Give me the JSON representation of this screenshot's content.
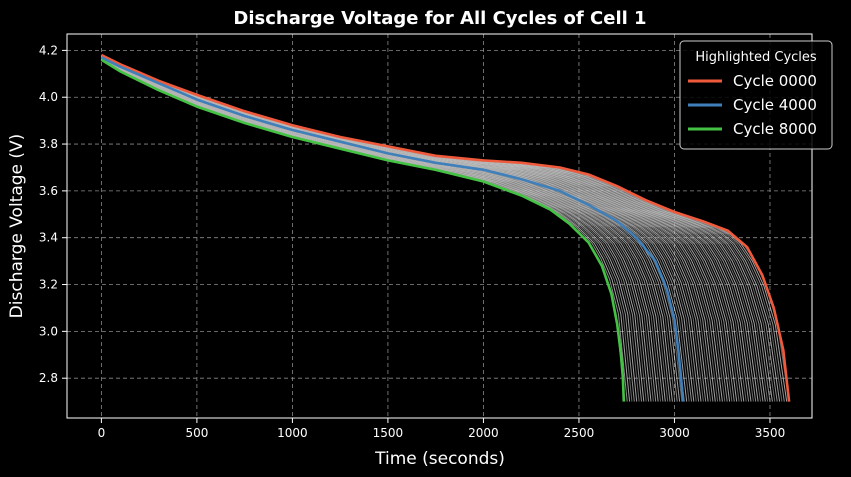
{
  "chart_data": {
    "type": "line",
    "title": "Discharge Voltage for All Cycles of Cell 1",
    "xlabel": "Time (seconds)",
    "ylabel": "Discharge Voltage (V)",
    "xlim": [
      -180,
      3720
    ],
    "ylim": [
      2.63,
      4.27
    ],
    "xticks": [
      0,
      500,
      1000,
      1500,
      2000,
      2500,
      3000,
      3500
    ],
    "yticks": [
      2.8,
      3.0,
      3.2,
      3.4,
      3.6,
      3.8,
      4.0,
      4.2
    ],
    "grid": true,
    "legend": {
      "title": "Highlighted Cycles",
      "position": "top-right"
    },
    "colors": {
      "background": "#000000",
      "grid": "#8a8a8a",
      "text": "#ffffff",
      "background_cycles": "#bdbdbd"
    },
    "background_cycles": {
      "color": "#bdbdbd",
      "end_time_range": [
        2740,
        3600
      ]
    },
    "series": [
      {
        "name": "Cycle 0000",
        "color": "#f05a3c",
        "points": [
          [
            0,
            4.18
          ],
          [
            100,
            4.14
          ],
          [
            300,
            4.07
          ],
          [
            500,
            4.01
          ],
          [
            750,
            3.94
          ],
          [
            1000,
            3.88
          ],
          [
            1250,
            3.83
          ],
          [
            1500,
            3.79
          ],
          [
            1750,
            3.75
          ],
          [
            2000,
            3.73
          ],
          [
            2200,
            3.72
          ],
          [
            2400,
            3.7
          ],
          [
            2550,
            3.67
          ],
          [
            2700,
            3.62
          ],
          [
            2850,
            3.56
          ],
          [
            3000,
            3.51
          ],
          [
            3150,
            3.47
          ],
          [
            3280,
            3.43
          ],
          [
            3380,
            3.36
          ],
          [
            3460,
            3.24
          ],
          [
            3520,
            3.1
          ],
          [
            3570,
            2.92
          ],
          [
            3600,
            2.7
          ]
        ]
      },
      {
        "name": "Cycle 4000",
        "color": "#3f7fba",
        "points": [
          [
            0,
            4.17
          ],
          [
            100,
            4.13
          ],
          [
            300,
            4.06
          ],
          [
            500,
            3.99
          ],
          [
            750,
            3.92
          ],
          [
            1000,
            3.86
          ],
          [
            1250,
            3.81
          ],
          [
            1500,
            3.76
          ],
          [
            1750,
            3.72
          ],
          [
            2000,
            3.69
          ],
          [
            2200,
            3.65
          ],
          [
            2400,
            3.6
          ],
          [
            2550,
            3.54
          ],
          [
            2700,
            3.47
          ],
          [
            2800,
            3.4
          ],
          [
            2900,
            3.3
          ],
          [
            2960,
            3.18
          ],
          [
            3000,
            3.05
          ],
          [
            3020,
            2.92
          ],
          [
            3035,
            2.8
          ],
          [
            3045,
            2.7
          ]
        ]
      },
      {
        "name": "Cycle 8000",
        "color": "#44c244",
        "points": [
          [
            0,
            4.16
          ],
          [
            100,
            4.11
          ],
          [
            300,
            4.03
          ],
          [
            500,
            3.96
          ],
          [
            750,
            3.89
          ],
          [
            1000,
            3.83
          ],
          [
            1250,
            3.78
          ],
          [
            1500,
            3.73
          ],
          [
            1750,
            3.69
          ],
          [
            2000,
            3.64
          ],
          [
            2200,
            3.58
          ],
          [
            2350,
            3.52
          ],
          [
            2450,
            3.46
          ],
          [
            2550,
            3.38
          ],
          [
            2620,
            3.28
          ],
          [
            2670,
            3.16
          ],
          [
            2700,
            3.03
          ],
          [
            2720,
            2.9
          ],
          [
            2730,
            2.8
          ],
          [
            2735,
            2.7
          ]
        ]
      }
    ]
  }
}
